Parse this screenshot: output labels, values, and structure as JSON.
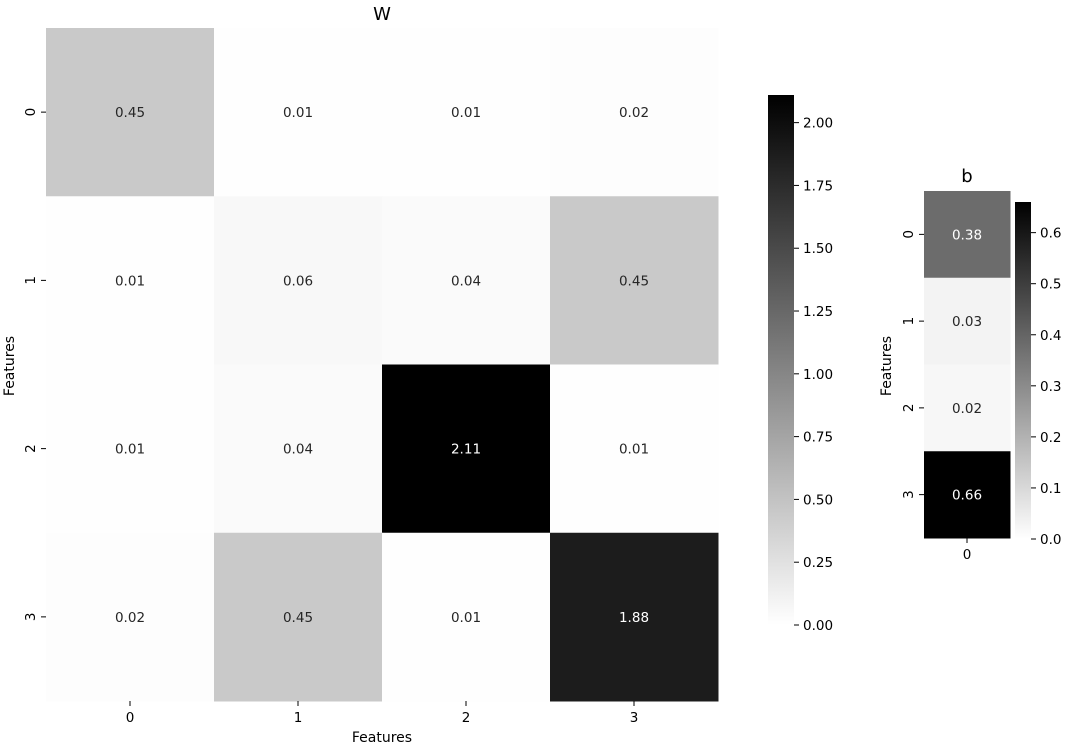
{
  "chart_data": [
    {
      "type": "heatmap",
      "title": "W",
      "xlabel": "Features",
      "ylabel": "Features",
      "x_categories": [
        "0",
        "1",
        "2",
        "3"
      ],
      "y_categories": [
        "0",
        "1",
        "2",
        "3"
      ],
      "values": [
        [
          0.45,
          0.01,
          0.01,
          0.02
        ],
        [
          0.01,
          0.06,
          0.04,
          0.45
        ],
        [
          0.01,
          0.04,
          2.11,
          0.01
        ],
        [
          0.02,
          0.45,
          0.01,
          1.88
        ]
      ],
      "cell_labels": [
        [
          "0.45",
          "0.01",
          "0.01",
          "0.02"
        ],
        [
          "0.01",
          "0.06",
          "0.04",
          "0.45"
        ],
        [
          "0.01",
          "0.04",
          "2.11",
          "0.01"
        ],
        [
          "0.02",
          "0.45",
          "0.01",
          "1.88"
        ]
      ],
      "colormap": "Greys",
      "vmin": 0,
      "vmax": 2.11,
      "colorbar_ticks": [
        0.0,
        0.25,
        0.5,
        0.75,
        1.0,
        1.25,
        1.5,
        1.75,
        2.0
      ],
      "colorbar_tick_labels": [
        "0.00",
        "0.25",
        "0.50",
        "0.75",
        "1.00",
        "1.25",
        "1.50",
        "1.75",
        "2.00"
      ],
      "colorbar_placement": "right"
    },
    {
      "type": "heatmap",
      "title": "b",
      "xlabel": "",
      "ylabel": "Features",
      "x_categories": [
        "0"
      ],
      "y_categories": [
        "0",
        "1",
        "2",
        "3"
      ],
      "values": [
        [
          0.38
        ],
        [
          0.03
        ],
        [
          0.02
        ],
        [
          0.66
        ]
      ],
      "cell_labels": [
        [
          "0.38"
        ],
        [
          "0.03"
        ],
        [
          "0.02"
        ],
        [
          "0.66"
        ]
      ],
      "colormap": "Greys",
      "vmin": 0,
      "vmax": 0.66,
      "colorbar_ticks": [
        0.0,
        0.1,
        0.2,
        0.3,
        0.4,
        0.5,
        0.6
      ],
      "colorbar_tick_labels": [
        "0.0",
        "0.1",
        "0.2",
        "0.3",
        "0.4",
        "0.5",
        "0.6"
      ],
      "colorbar_placement": "right"
    }
  ]
}
